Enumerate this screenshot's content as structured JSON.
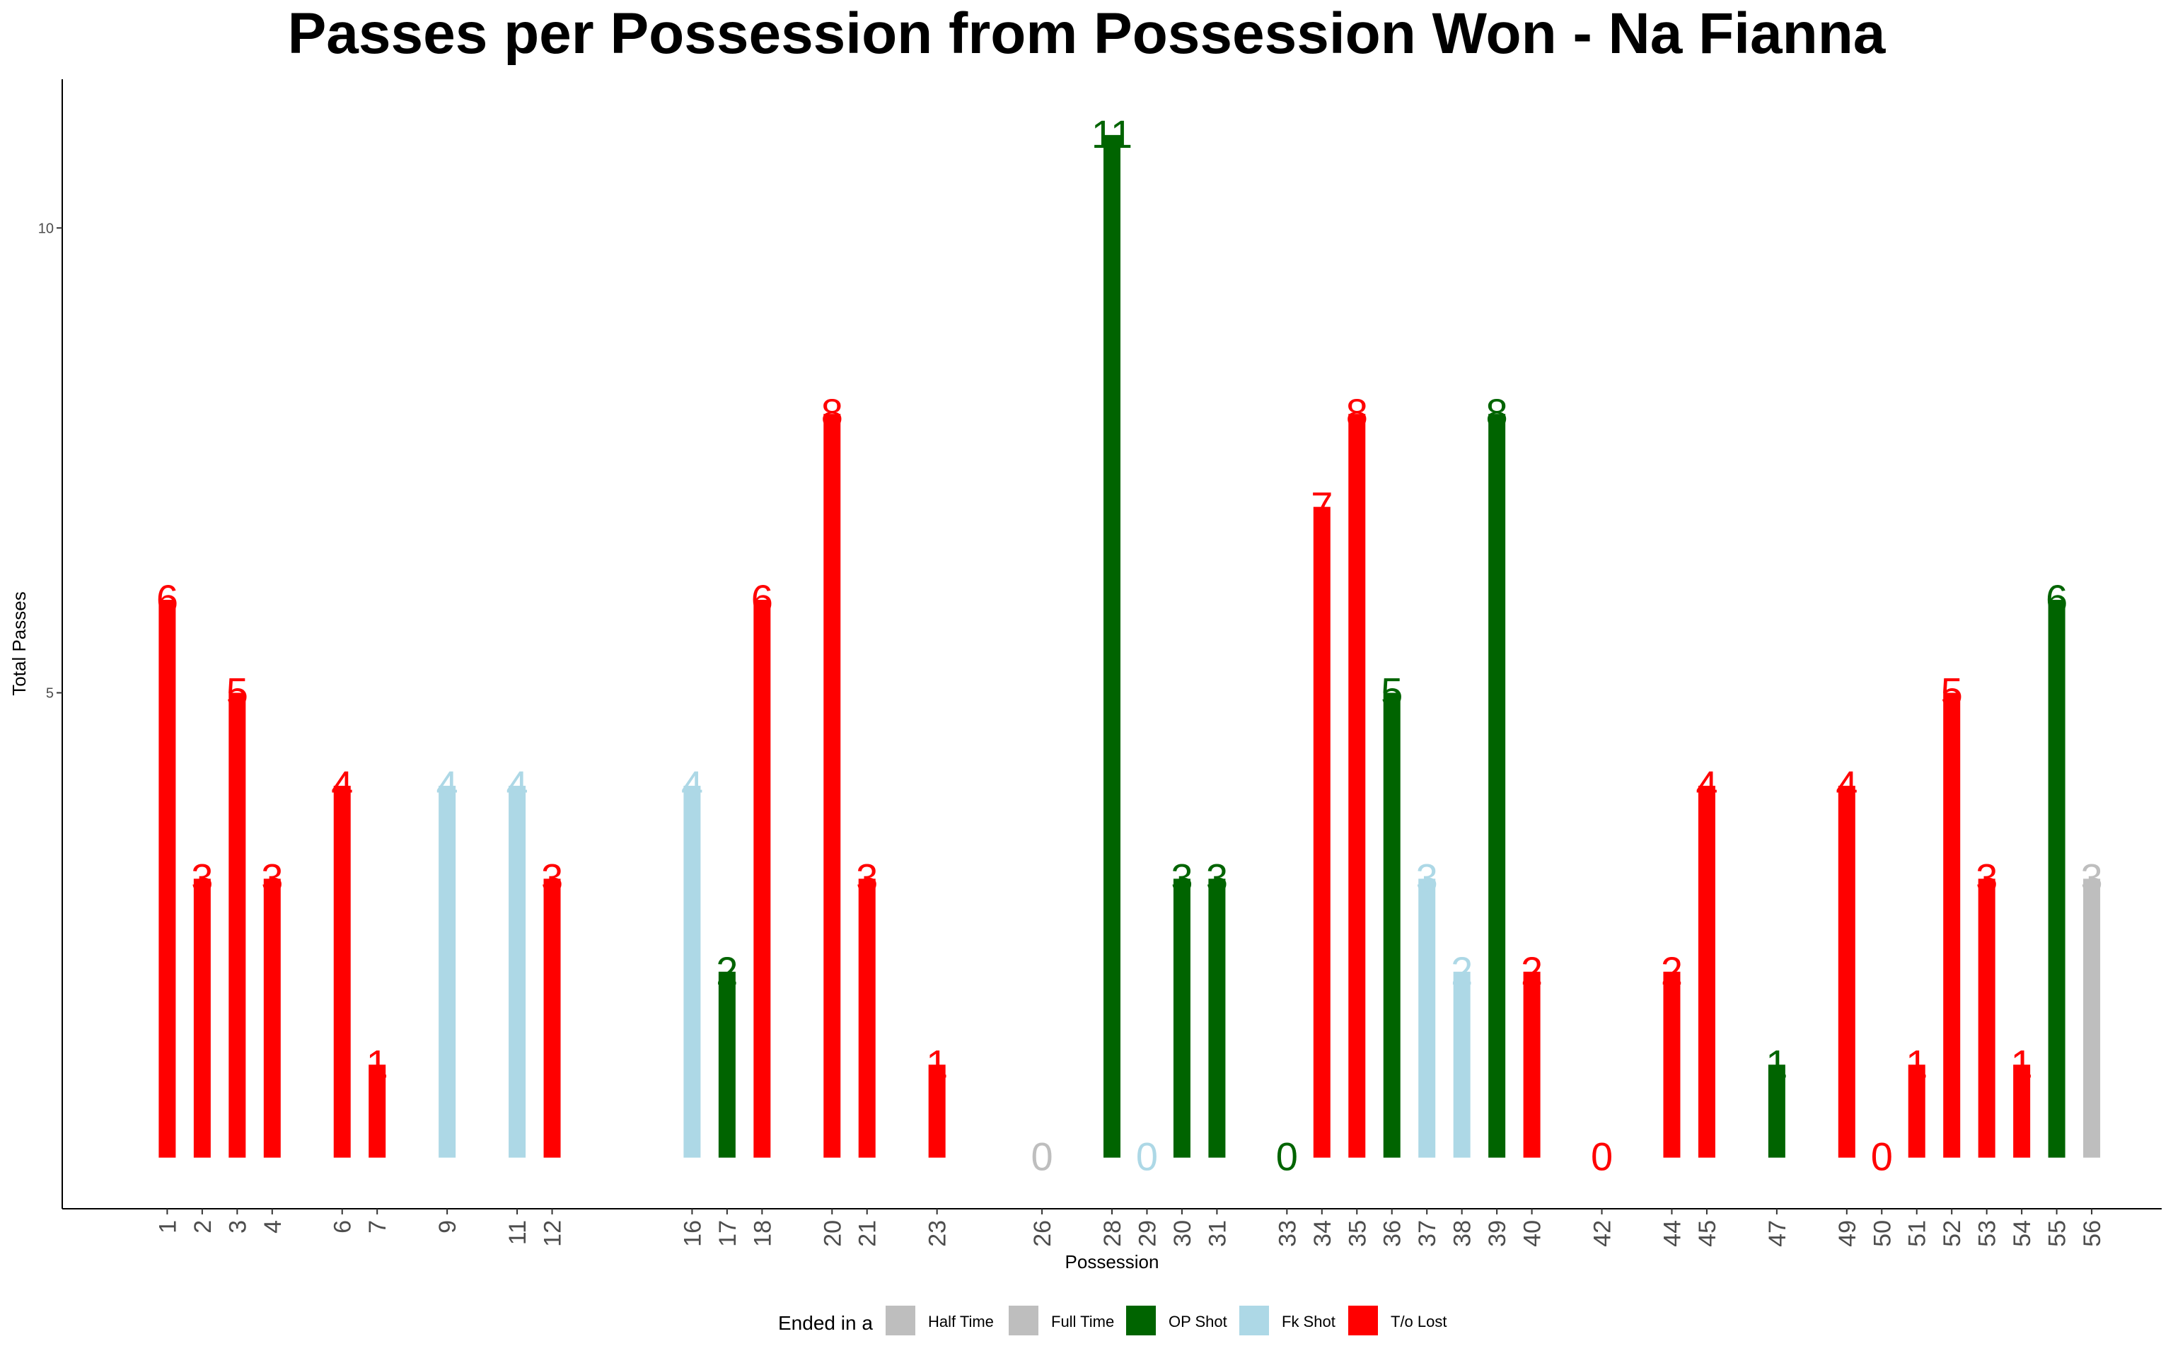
{
  "chart_data": {
    "type": "bar",
    "title": "Passes per Possession from Possession Won - Na Fianna",
    "xlabel": "Possession",
    "ylabel": "Total Passes",
    "yticks": [
      5,
      10
    ],
    "ylim": [
      -0.55,
      11.6
    ],
    "xlim": [
      -2,
      58
    ],
    "grid": false,
    "legend_title": "Ended in a",
    "legend_position": "bottom",
    "legend": [
      {
        "name": "Half Time",
        "color": "#BEBEBE"
      },
      {
        "name": "Full Time",
        "color": "#BEBEBE"
      },
      {
        "name": "OP Shot",
        "color": "#006400"
      },
      {
        "name": "Fk Shot",
        "color": "#ADD8E6"
      },
      {
        "name": "T/o Lost",
        "color": "#FF0000"
      }
    ],
    "bars": [
      {
        "x": 1,
        "label": "1",
        "value": 6,
        "outcome": "T/o Lost"
      },
      {
        "x": 2,
        "label": "2",
        "value": 3,
        "outcome": "T/o Lost"
      },
      {
        "x": 3,
        "label": "3",
        "value": 5,
        "outcome": "T/o Lost"
      },
      {
        "x": 4,
        "label": "4",
        "value": 3,
        "outcome": "T/o Lost"
      },
      {
        "x": 6,
        "label": "6",
        "value": 4,
        "outcome": "T/o Lost"
      },
      {
        "x": 7,
        "label": "7",
        "value": 1,
        "outcome": "T/o Lost"
      },
      {
        "x": 9,
        "label": "9",
        "value": 4,
        "outcome": "Fk Shot"
      },
      {
        "x": 11,
        "label": "11",
        "value": 4,
        "outcome": "Fk Shot"
      },
      {
        "x": 12,
        "label": "12",
        "value": 3,
        "outcome": "T/o Lost"
      },
      {
        "x": 16,
        "label": "16",
        "value": 4,
        "outcome": "Fk Shot"
      },
      {
        "x": 17,
        "label": "17",
        "value": 2,
        "outcome": "OP Shot"
      },
      {
        "x": 18,
        "label": "18",
        "value": 6,
        "outcome": "T/o Lost"
      },
      {
        "x": 20,
        "label": "20",
        "value": 8,
        "outcome": "T/o Lost"
      },
      {
        "x": 21,
        "label": "21",
        "value": 3,
        "outcome": "T/o Lost"
      },
      {
        "x": 23,
        "label": "23",
        "value": 1,
        "outcome": "T/o Lost"
      },
      {
        "x": 26,
        "label": "26",
        "value": 0,
        "outcome": "Half Time"
      },
      {
        "x": 28,
        "label": "28",
        "value": 11,
        "outcome": "OP Shot"
      },
      {
        "x": 29,
        "label": "29",
        "value": 0,
        "outcome": "Fk Shot"
      },
      {
        "x": 30,
        "label": "30",
        "value": 3,
        "outcome": "OP Shot"
      },
      {
        "x": 31,
        "label": "31",
        "value": 3,
        "outcome": "OP Shot"
      },
      {
        "x": 33,
        "label": "33",
        "value": 0,
        "outcome": "OP Shot"
      },
      {
        "x": 34,
        "label": "34",
        "value": 7,
        "outcome": "T/o Lost"
      },
      {
        "x": 35,
        "label": "35",
        "value": 8,
        "outcome": "T/o Lost"
      },
      {
        "x": 36,
        "label": "36",
        "value": 5,
        "outcome": "OP Shot"
      },
      {
        "x": 37,
        "label": "37",
        "value": 3,
        "outcome": "Fk Shot"
      },
      {
        "x": 38,
        "label": "38",
        "value": 2,
        "outcome": "Fk Shot"
      },
      {
        "x": 39,
        "label": "39",
        "value": 8,
        "outcome": "OP Shot"
      },
      {
        "x": 40,
        "label": "40",
        "value": 2,
        "outcome": "T/o Lost"
      },
      {
        "x": 42,
        "label": "42",
        "value": 0,
        "outcome": "T/o Lost"
      },
      {
        "x": 44,
        "label": "44",
        "value": 2,
        "outcome": "T/o Lost"
      },
      {
        "x": 45,
        "label": "45",
        "value": 4,
        "outcome": "T/o Lost"
      },
      {
        "x": 47,
        "label": "47",
        "value": 1,
        "outcome": "OP Shot"
      },
      {
        "x": 49,
        "label": "49",
        "value": 4,
        "outcome": "T/o Lost"
      },
      {
        "x": 50,
        "label": "50",
        "value": 0,
        "outcome": "T/o Lost"
      },
      {
        "x": 51,
        "label": "51",
        "value": 1,
        "outcome": "T/o Lost"
      },
      {
        "x": 52,
        "label": "52",
        "value": 5,
        "outcome": "T/o Lost"
      },
      {
        "x": 53,
        "label": "53",
        "value": 3,
        "outcome": "T/o Lost"
      },
      {
        "x": 54,
        "label": "54",
        "value": 1,
        "outcome": "T/o Lost"
      },
      {
        "x": 55,
        "label": "55",
        "value": 6,
        "outcome": "OP Shot"
      },
      {
        "x": 56,
        "label": "56",
        "value": 3,
        "outcome": "Full Time"
      }
    ]
  }
}
